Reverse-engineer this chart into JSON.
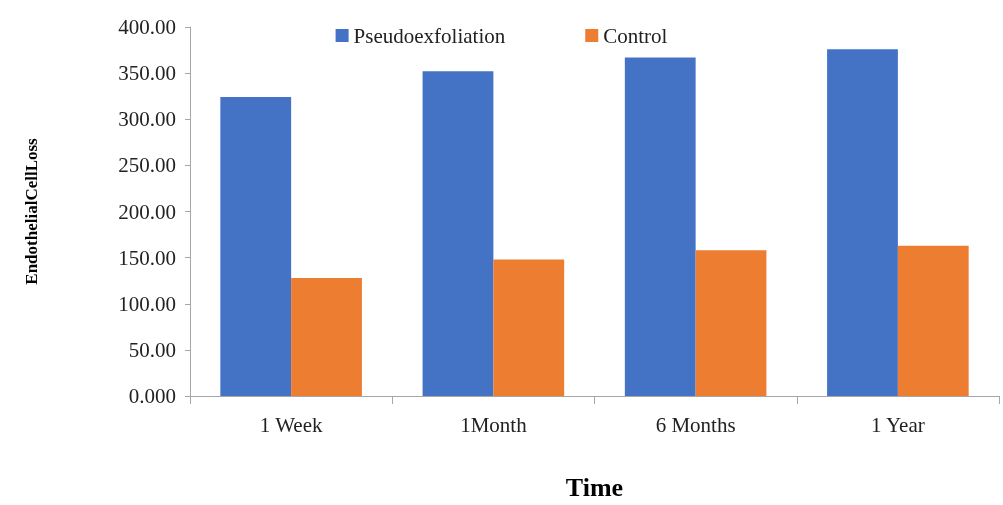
{
  "chart_data": {
    "type": "bar",
    "xlabel": "Time",
    "ylabel": "EndothelialCellLoss",
    "categories": [
      "1 Week",
      "1Month",
      "6 Months",
      "1 Year"
    ],
    "series": [
      {
        "name": "Pseudoexfoliation",
        "color": "#4472c4",
        "values": [
          324,
          352,
          367,
          376
        ]
      },
      {
        "name": "Control",
        "color": "#ed7d31",
        "values": [
          128,
          148,
          158,
          163
        ]
      }
    ],
    "ylim": [
      0,
      400
    ],
    "yticks": [
      {
        "value": 0,
        "label": "0.000"
      },
      {
        "value": 50,
        "label": "50.00"
      },
      {
        "value": 100,
        "label": "100.00"
      },
      {
        "value": 150,
        "label": "150.00"
      },
      {
        "value": 200,
        "label": "200.00"
      },
      {
        "value": 250,
        "label": "250.00"
      },
      {
        "value": 300,
        "label": "300.00"
      },
      {
        "value": 350,
        "label": "350.00"
      },
      {
        "value": 400,
        "label": "400.00"
      }
    ],
    "grid": false,
    "legend": "top"
  }
}
